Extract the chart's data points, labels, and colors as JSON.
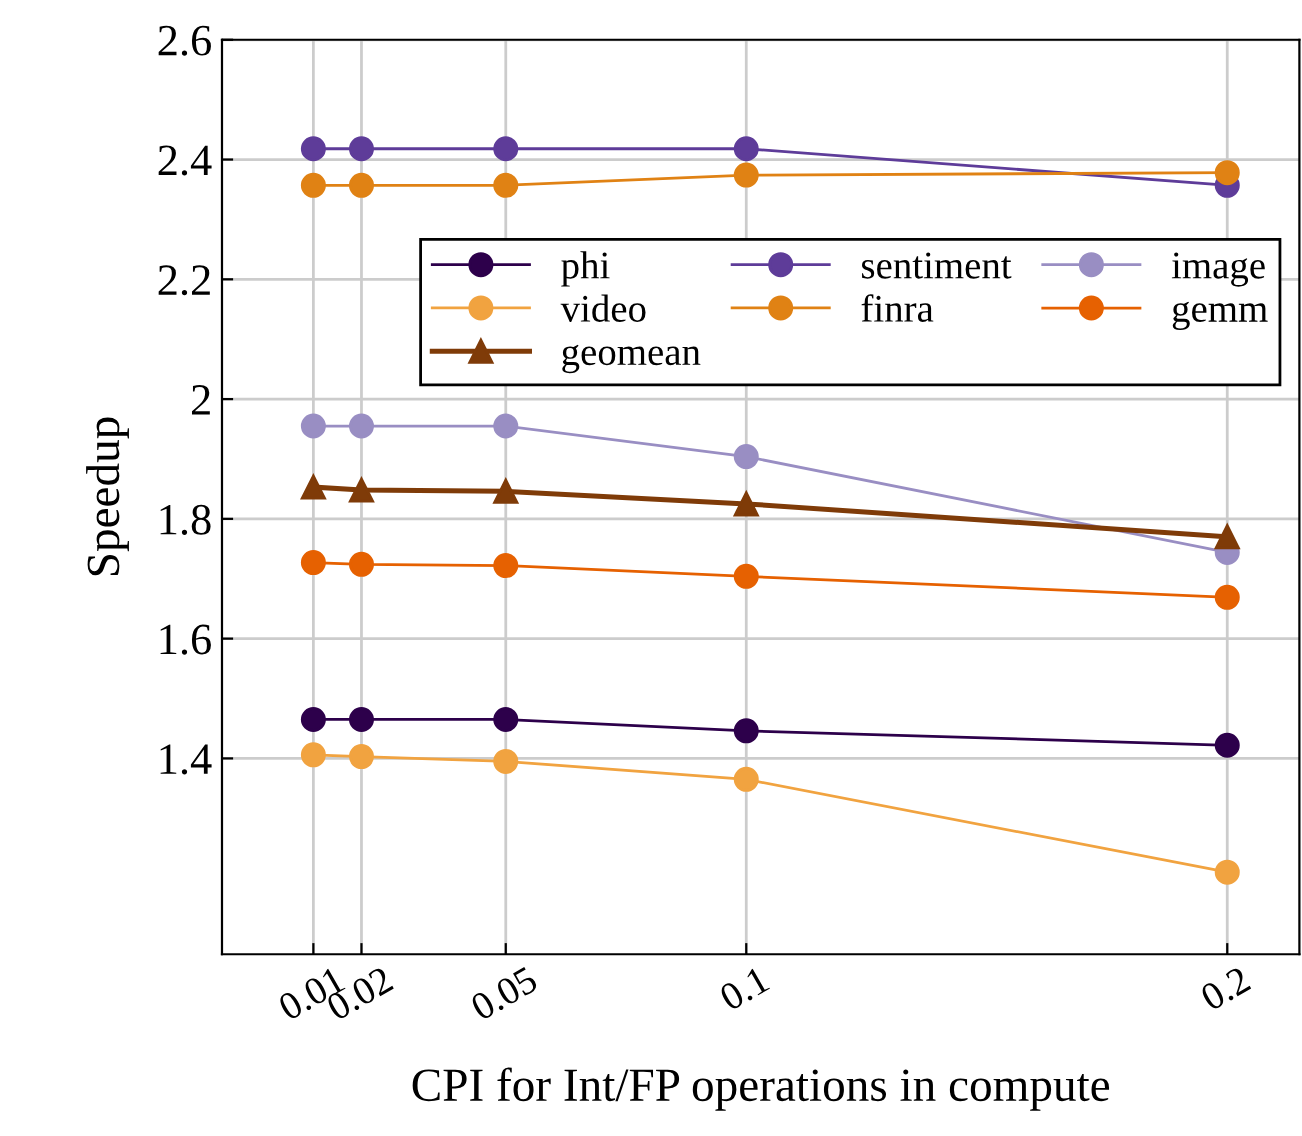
{
  "chart_data": {
    "type": "line",
    "xlabel": "CPI for Int/FP operations in compute",
    "ylabel": "Speedup",
    "x": [
      0.01,
      0.02,
      0.05,
      0.1,
      0.2
    ],
    "series": [
      {
        "name": "phi",
        "color": "#2d004b",
        "values": [
          1.465,
          1.465,
          1.465,
          1.446,
          1.422
        ]
      },
      {
        "name": "sentiment",
        "color": "#5e3c99",
        "values": [
          2.418,
          2.418,
          2.418,
          2.418,
          2.357
        ]
      },
      {
        "name": "image",
        "color": "#998ec3",
        "values": [
          1.955,
          1.955,
          1.955,
          1.904,
          1.744
        ]
      },
      {
        "name": "video",
        "color": "#f1a340",
        "values": [
          1.406,
          1.403,
          1.395,
          1.365,
          1.21
        ]
      },
      {
        "name": "finra",
        "color": "#e08214",
        "values": [
          2.357,
          2.357,
          2.357,
          2.374,
          2.378
        ]
      },
      {
        "name": "gemm",
        "color": "#e66101",
        "values": [
          1.727,
          1.724,
          1.722,
          1.704,
          1.669
        ]
      },
      {
        "name": "geomean",
        "color": "#7f3b08",
        "marker": "triangle",
        "values": [
          1.853,
          1.848,
          1.846,
          1.825,
          1.77
        ]
      }
    ],
    "marker": "circle",
    "line_style": "solid",
    "xlim": [
      -0.009,
      0.215
    ],
    "xticks": [
      0.01,
      0.02,
      0.05,
      0.1,
      0.2
    ],
    "ylim": [
      1.073,
      2.6
    ],
    "yticks": [
      1.4,
      1.6,
      1.8,
      2,
      2.2,
      2.4,
      2.6
    ],
    "grid": true,
    "legend": "top right"
  }
}
